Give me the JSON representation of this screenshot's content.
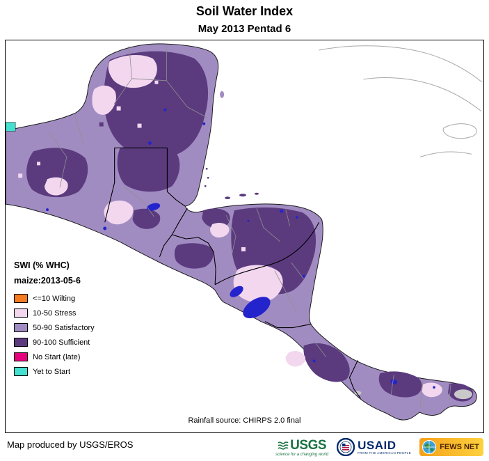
{
  "page": {
    "title": "Soil Water Index",
    "subtitle": "May 2013 Pentad 6"
  },
  "legend": {
    "title": "SWI (% WHC)",
    "subtitle": "maize:2013-05-6",
    "items": [
      {
        "label": "<=10 Wilting",
        "color": "#f47b20"
      },
      {
        "label": "10-50 Stress",
        "color": "#f2d7ef"
      },
      {
        "label": "50-90 Satisfactory",
        "color": "#a18cc2"
      },
      {
        "label": "90-100 Sufficient",
        "color": "#5b3b7e"
      },
      {
        "label": "No Start (late)",
        "color": "#e5007d"
      },
      {
        "label": "Yet to Start",
        "color": "#45e0cf"
      }
    ]
  },
  "map": {
    "rainfall_source": "Rainfall source: CHIRPS 2.0 final",
    "lake_color": "#2424cc"
  },
  "footer": {
    "credit": "Map produced by USGS/EROS",
    "logos": [
      {
        "name": "usgs",
        "text": "USGS",
        "tagline": "science for a changing world"
      },
      {
        "name": "usaid",
        "text": "USAID",
        "tagline": "FROM THE AMERICAN PEOPLE"
      },
      {
        "name": "fewsnet",
        "text": "FEWS NET",
        "tagline": ""
      }
    ]
  }
}
